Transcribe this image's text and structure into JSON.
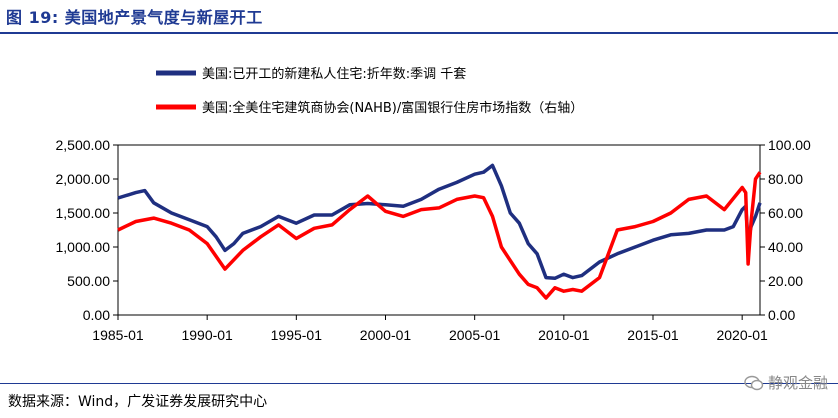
{
  "figure": {
    "title": "图 19:  美国地产景气度与新屋开工",
    "source": "数据来源：Wind，广发证券发展研究中心",
    "watermark": "静观金融"
  },
  "colors": {
    "starts": "#1f2f80",
    "nahb": "#ff0000",
    "title": "#1f3a93"
  },
  "chart_data": {
    "type": "line",
    "title": "",
    "legend_position": "top",
    "x_tick_labels": [
      "1985-01",
      "1990-01",
      "1995-01",
      "2000-01",
      "2005-01",
      "2010-01",
      "2015-01",
      "2020-01"
    ],
    "xlim": [
      1985.0,
      2021.0
    ],
    "y_left": {
      "label": "",
      "ylim": [
        0,
        2500
      ],
      "tick_labels": [
        "0.00",
        "500.00",
        "1,000.00",
        "1,500.00",
        "2,000.00",
        "2,500.00"
      ]
    },
    "y_right": {
      "label": "",
      "ylim": [
        0,
        100
      ],
      "tick_labels": [
        "0.00",
        "20.00",
        "40.00",
        "60.00",
        "80.00",
        "100.00"
      ]
    },
    "series": [
      {
        "name": "美国:已开工的新建私人住宅:折年数:季调 千套",
        "axis": "left",
        "x": [
          1985.0,
          1986.0,
          1986.5,
          1987.0,
          1988.0,
          1989.0,
          1990.0,
          1990.5,
          1991.0,
          1991.5,
          1992.0,
          1993.0,
          1994.0,
          1995.0,
          1996.0,
          1997.0,
          1998.0,
          1999.0,
          2000.0,
          2001.0,
          2002.0,
          2003.0,
          2004.0,
          2005.0,
          2005.5,
          2006.0,
          2006.5,
          2007.0,
          2007.5,
          2008.0,
          2008.5,
          2009.0,
          2009.5,
          2010.0,
          2010.5,
          2011.0,
          2012.0,
          2013.0,
          2014.0,
          2015.0,
          2016.0,
          2017.0,
          2018.0,
          2019.0,
          2019.5,
          2020.0,
          2020.2,
          2020.33,
          2020.5,
          2020.75,
          2021.0
        ],
        "y": [
          1720,
          1800,
          1830,
          1650,
          1500,
          1400,
          1300,
          1150,
          950,
          1050,
          1200,
          1300,
          1450,
          1350,
          1470,
          1470,
          1620,
          1640,
          1620,
          1600,
          1700,
          1850,
          1950,
          2070,
          2100,
          2200,
          1900,
          1500,
          1350,
          1050,
          900,
          550,
          540,
          600,
          550,
          580,
          780,
          900,
          1000,
          1100,
          1180,
          1200,
          1250,
          1250,
          1300,
          1550,
          1600,
          1100,
          1300,
          1450,
          1650
        ]
      },
      {
        "name": "美国:全美住宅建筑商协会(NAHB)/富国银行住房市场指数（右轴）",
        "axis": "right",
        "x": [
          1985.0,
          1986.0,
          1987.0,
          1988.0,
          1989.0,
          1990.0,
          1991.0,
          1992.0,
          1993.0,
          1994.0,
          1995.0,
          1996.0,
          1997.0,
          1998.0,
          1999.0,
          2000.0,
          2001.0,
          2002.0,
          2003.0,
          2004.0,
          2005.0,
          2005.5,
          2006.0,
          2006.5,
          2007.0,
          2007.5,
          2008.0,
          2008.5,
          2009.0,
          2009.5,
          2010.0,
          2010.5,
          2011.0,
          2012.0,
          2013.0,
          2014.0,
          2015.0,
          2016.0,
          2017.0,
          2018.0,
          2019.0,
          2020.0,
          2020.2,
          2020.33,
          2020.5,
          2020.75,
          2021.0
        ],
        "y": [
          50,
          55,
          57,
          54,
          50,
          42,
          27,
          38,
          46,
          53,
          45,
          51,
          53,
          62,
          70,
          61,
          58,
          62,
          63,
          68,
          70,
          69,
          58,
          40,
          32,
          24,
          18,
          16,
          10,
          16,
          14,
          15,
          14,
          22,
          50,
          52,
          55,
          60,
          68,
          70,
          62,
          75,
          72,
          30,
          55,
          80,
          84
        ]
      }
    ]
  }
}
